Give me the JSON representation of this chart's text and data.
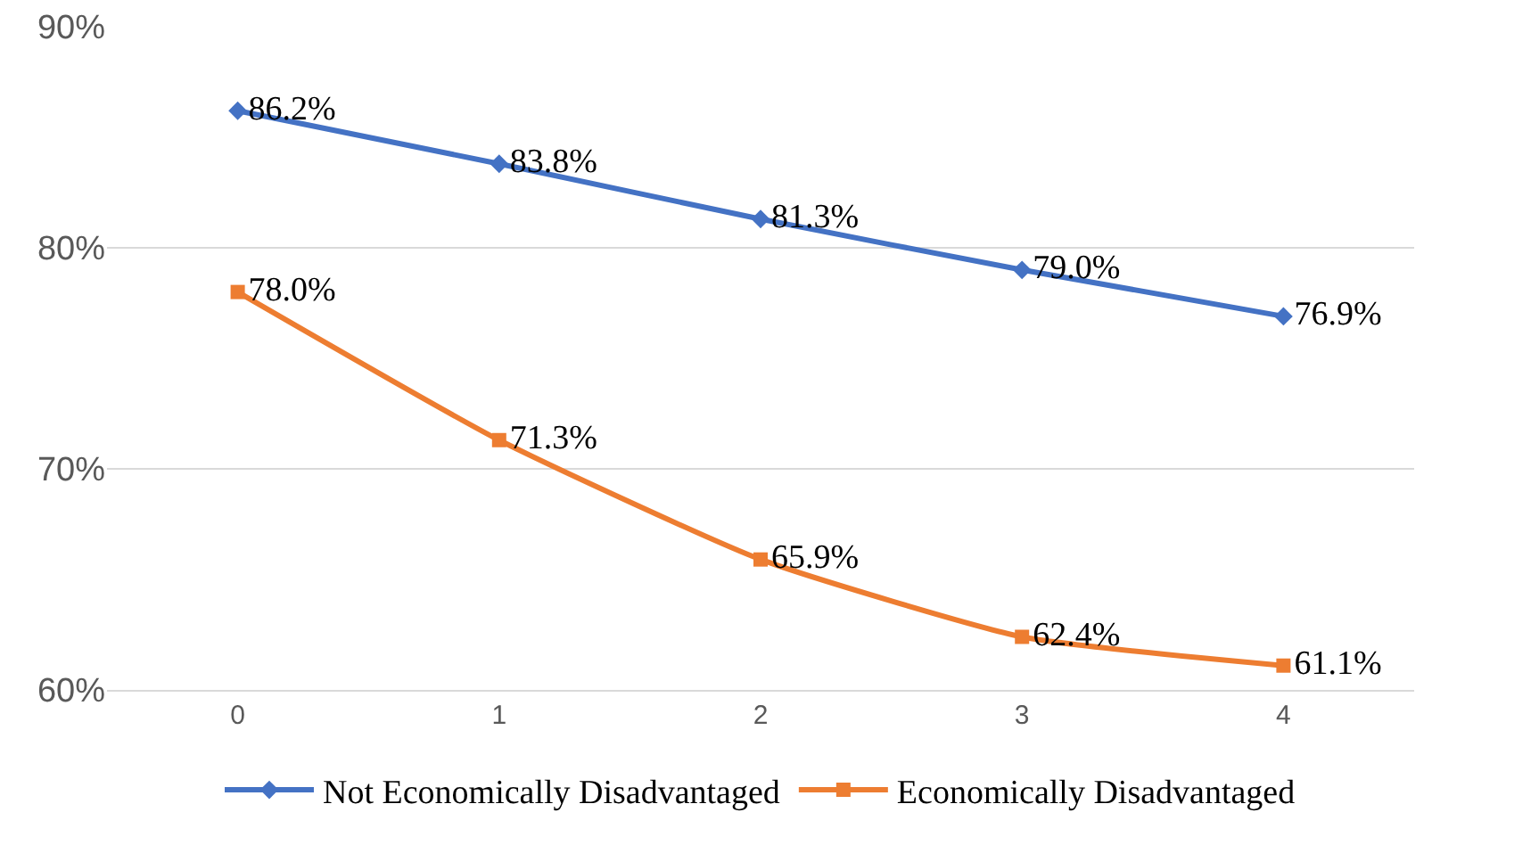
{
  "chart_data": {
    "type": "line",
    "categories": [
      "0",
      "1",
      "2",
      "3",
      "4"
    ],
    "series": [
      {
        "name": "Not Economically Disadvantaged",
        "color": "#4472c4",
        "marker": "diamond",
        "values": [
          86.2,
          83.8,
          81.3,
          79.0,
          76.9
        ],
        "value_labels": [
          "86.2%",
          "83.8%",
          "81.3%",
          "79.0%",
          "76.9%"
        ]
      },
      {
        "name": "Economically Disadvantaged",
        "color": "#ed7d31",
        "marker": "square",
        "values": [
          78.0,
          71.3,
          65.9,
          62.4,
          61.1
        ],
        "value_labels": [
          "78.0%",
          "71.3%",
          "65.9%",
          "62.4%",
          "61.1%"
        ]
      }
    ],
    "ylim": [
      60,
      90
    ],
    "yticks": [
      {
        "value": 60,
        "label": "60%"
      },
      {
        "value": 70,
        "label": "70%"
      },
      {
        "value": 80,
        "label": "80%"
      },
      {
        "value": 90,
        "label": "90%"
      }
    ],
    "grid": "y",
    "legend": "bottom",
    "line_style": "solid"
  }
}
